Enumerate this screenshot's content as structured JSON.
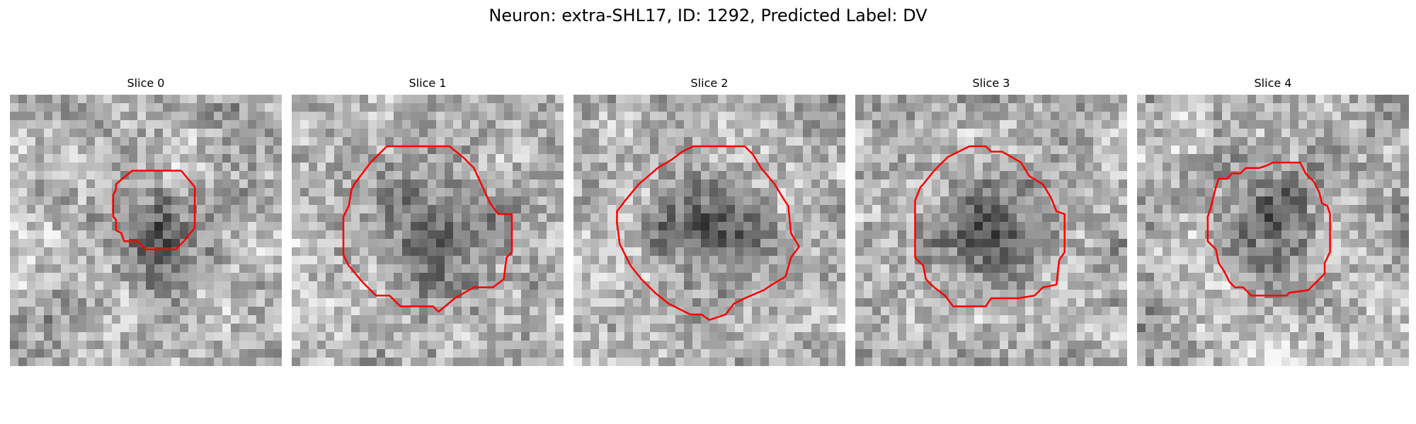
{
  "figure": {
    "title": "Neuron: extra-SHL17, ID: 1292, Predicted Label: DV"
  },
  "slices": [
    {
      "label": "Slice 0",
      "seed": 11,
      "dark_center": [
        0.55,
        0.52
      ],
      "contour": [
        [
          0.39,
          0.33
        ],
        [
          0.45,
          0.28
        ],
        [
          0.63,
          0.28
        ],
        [
          0.68,
          0.34
        ],
        [
          0.68,
          0.49
        ],
        [
          0.64,
          0.54
        ],
        [
          0.61,
          0.57
        ],
        [
          0.5,
          0.57
        ],
        [
          0.47,
          0.54
        ],
        [
          0.42,
          0.54
        ],
        [
          0.41,
          0.51
        ],
        [
          0.39,
          0.5
        ],
        [
          0.39,
          0.46
        ],
        [
          0.38,
          0.45
        ],
        [
          0.38,
          0.37
        ],
        [
          0.39,
          0.35
        ]
      ]
    },
    {
      "label": "Slice 1",
      "seed": 23,
      "dark_center": [
        0.52,
        0.52
      ],
      "contour": [
        [
          0.23,
          0.33
        ],
        [
          0.29,
          0.25
        ],
        [
          0.35,
          0.19
        ],
        [
          0.58,
          0.19
        ],
        [
          0.63,
          0.23
        ],
        [
          0.67,
          0.27
        ],
        [
          0.73,
          0.4
        ],
        [
          0.76,
          0.44
        ],
        [
          0.81,
          0.44
        ],
        [
          0.81,
          0.58
        ],
        [
          0.79,
          0.6
        ],
        [
          0.78,
          0.68
        ],
        [
          0.74,
          0.71
        ],
        [
          0.67,
          0.71
        ],
        [
          0.6,
          0.75
        ],
        [
          0.54,
          0.8
        ],
        [
          0.52,
          0.78
        ],
        [
          0.4,
          0.78
        ],
        [
          0.36,
          0.74
        ],
        [
          0.31,
          0.74
        ],
        [
          0.26,
          0.69
        ],
        [
          0.21,
          0.63
        ],
        [
          0.19,
          0.59
        ],
        [
          0.19,
          0.45
        ],
        [
          0.21,
          0.41
        ],
        [
          0.22,
          0.35
        ]
      ]
    },
    {
      "label": "Slice 2",
      "seed": 37,
      "dark_center": [
        0.5,
        0.5
      ],
      "contour": [
        [
          0.31,
          0.27
        ],
        [
          0.36,
          0.24
        ],
        [
          0.4,
          0.21
        ],
        [
          0.44,
          0.19
        ],
        [
          0.63,
          0.19
        ],
        [
          0.66,
          0.22
        ],
        [
          0.69,
          0.27
        ],
        [
          0.74,
          0.33
        ],
        [
          0.77,
          0.38
        ],
        [
          0.79,
          0.41
        ],
        [
          0.8,
          0.51
        ],
        [
          0.83,
          0.56
        ],
        [
          0.8,
          0.6
        ],
        [
          0.78,
          0.67
        ],
        [
          0.73,
          0.7
        ],
        [
          0.7,
          0.72
        ],
        [
          0.63,
          0.75
        ],
        [
          0.59,
          0.77
        ],
        [
          0.56,
          0.81
        ],
        [
          0.5,
          0.83
        ],
        [
          0.47,
          0.81
        ],
        [
          0.43,
          0.81
        ],
        [
          0.35,
          0.77
        ],
        [
          0.3,
          0.73
        ],
        [
          0.25,
          0.68
        ],
        [
          0.21,
          0.63
        ],
        [
          0.17,
          0.55
        ],
        [
          0.16,
          0.47
        ],
        [
          0.16,
          0.43
        ],
        [
          0.19,
          0.39
        ],
        [
          0.24,
          0.33
        ]
      ]
    },
    {
      "label": "Slice 3",
      "seed": 53,
      "dark_center": [
        0.5,
        0.48
      ],
      "contour": [
        [
          0.25,
          0.33
        ],
        [
          0.29,
          0.28
        ],
        [
          0.34,
          0.23
        ],
        [
          0.38,
          0.21
        ],
        [
          0.42,
          0.19
        ],
        [
          0.48,
          0.19
        ],
        [
          0.5,
          0.21
        ],
        [
          0.54,
          0.21
        ],
        [
          0.61,
          0.25
        ],
        [
          0.64,
          0.3
        ],
        [
          0.69,
          0.33
        ],
        [
          0.72,
          0.38
        ],
        [
          0.74,
          0.43
        ],
        [
          0.77,
          0.44
        ],
        [
          0.77,
          0.58
        ],
        [
          0.75,
          0.61
        ],
        [
          0.74,
          0.7
        ],
        [
          0.69,
          0.71
        ],
        [
          0.66,
          0.74
        ],
        [
          0.6,
          0.75
        ],
        [
          0.5,
          0.75
        ],
        [
          0.48,
          0.78
        ],
        [
          0.36,
          0.78
        ],
        [
          0.33,
          0.74
        ],
        [
          0.29,
          0.71
        ],
        [
          0.26,
          0.68
        ],
        [
          0.25,
          0.63
        ],
        [
          0.22,
          0.6
        ],
        [
          0.22,
          0.39
        ],
        [
          0.24,
          0.34
        ]
      ]
    },
    {
      "label": "Slice 4",
      "seed": 71,
      "dark_center": [
        0.48,
        0.45
      ],
      "contour": [
        [
          0.29,
          0.34
        ],
        [
          0.3,
          0.31
        ],
        [
          0.33,
          0.31
        ],
        [
          0.35,
          0.29
        ],
        [
          0.38,
          0.29
        ],
        [
          0.4,
          0.27
        ],
        [
          0.45,
          0.27
        ],
        [
          0.48,
          0.26
        ],
        [
          0.5,
          0.25
        ],
        [
          0.6,
          0.25
        ],
        [
          0.62,
          0.29
        ],
        [
          0.65,
          0.32
        ],
        [
          0.67,
          0.36
        ],
        [
          0.68,
          0.4
        ],
        [
          0.7,
          0.41
        ],
        [
          0.71,
          0.44
        ],
        [
          0.71,
          0.58
        ],
        [
          0.69,
          0.62
        ],
        [
          0.69,
          0.66
        ],
        [
          0.66,
          0.69
        ],
        [
          0.63,
          0.72
        ],
        [
          0.56,
          0.73
        ],
        [
          0.55,
          0.74
        ],
        [
          0.42,
          0.74
        ],
        [
          0.39,
          0.71
        ],
        [
          0.36,
          0.71
        ],
        [
          0.34,
          0.69
        ],
        [
          0.32,
          0.65
        ],
        [
          0.3,
          0.62
        ],
        [
          0.29,
          0.57
        ],
        [
          0.26,
          0.54
        ],
        [
          0.26,
          0.45
        ],
        [
          0.27,
          0.42
        ],
        [
          0.28,
          0.38
        ]
      ]
    }
  ],
  "colors": {
    "contour": "#ff0000"
  }
}
